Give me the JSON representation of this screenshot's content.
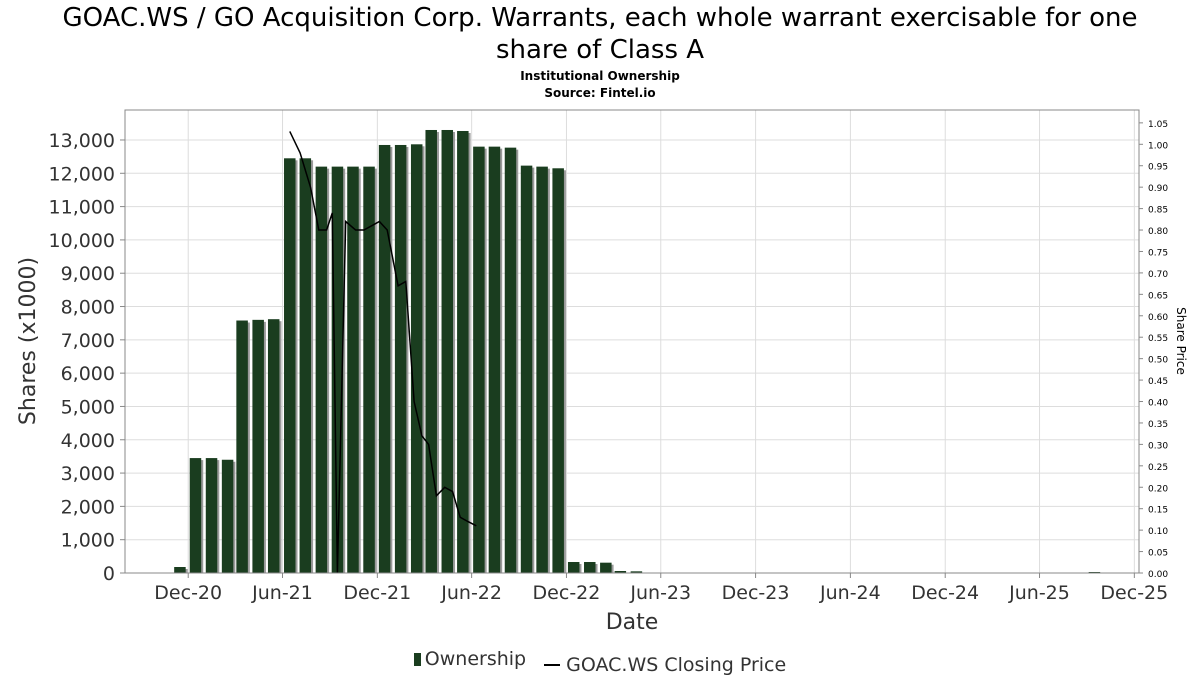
{
  "header": {
    "title_line1": "GOAC.WS / GO Acquisition Corp. Warrants, each whole warrant exercisable for one",
    "title_line2": "share of Class A",
    "subtitle1": "Institutional Ownership",
    "subtitle2": "Source: Fintel.io"
  },
  "legend": {
    "ownership": "Ownership",
    "price": "GOAC.WS Closing Price"
  },
  "colors": {
    "bar": "#1a3d1f",
    "bar_shadow": "#9a9a9a",
    "price_line": "#000000",
    "grid": "#dddddd"
  },
  "chart_data": {
    "type": "bar",
    "xlabel": "Date",
    "ylabel": "Shares (x1000)",
    "y2label": "Share Price",
    "ylim": [
      0,
      13900
    ],
    "y2lim": [
      0,
      1.08
    ],
    "yticks": [
      "0",
      "1,000",
      "2,000",
      "3,000",
      "4,000",
      "5,000",
      "6,000",
      "7,000",
      "8,000",
      "9,000",
      "10,000",
      "11,000",
      "12,000",
      "13,000"
    ],
    "y2ticks": [
      "0.00",
      "0.05",
      "0.10",
      "0.15",
      "0.20",
      "0.25",
      "0.30",
      "0.35",
      "0.40",
      "0.45",
      "0.50",
      "0.55",
      "0.60",
      "0.65",
      "0.70",
      "0.75",
      "0.80",
      "0.85",
      "0.90",
      "0.95",
      "1.00",
      "1.05"
    ],
    "xticks": [
      "Dec-20",
      "Jun-21",
      "Dec-21",
      "Jun-22",
      "Dec-22",
      "Jun-23",
      "Dec-23",
      "Jun-24",
      "Dec-24",
      "Jun-25",
      "Dec-25"
    ],
    "grid": true,
    "legend_position": "bottom",
    "series": [
      {
        "name": "Ownership",
        "x": [
          "2020-11-15",
          "2020-12-15",
          "2021-01-15",
          "2021-02-15",
          "2021-03-15",
          "2021-04-15",
          "2021-05-15",
          "2021-06-15",
          "2021-07-15",
          "2021-08-15",
          "2021-09-15",
          "2021-10-15",
          "2021-11-15",
          "2021-12-15",
          "2022-01-15",
          "2022-02-15",
          "2022-03-15",
          "2022-04-15",
          "2022-05-15",
          "2022-06-15",
          "2022-07-15",
          "2022-08-15",
          "2022-09-15",
          "2022-10-15",
          "2022-11-15",
          "2022-12-15",
          "2023-01-15",
          "2023-02-15",
          "2023-03-15",
          "2023-04-15",
          "2025-09-15"
        ],
        "values": [
          180,
          3450,
          3450,
          3400,
          7580,
          7600,
          7620,
          12450,
          12450,
          12200,
          12200,
          12200,
          12200,
          12850,
          12850,
          12870,
          13300,
          13300,
          13270,
          12800,
          12800,
          12770,
          12230,
          12200,
          12150,
          330,
          330,
          310,
          60,
          50,
          30
        ]
      },
      {
        "name": "GOAC.WS Closing Price",
        "x": [
          "2021-06-15",
          "2021-07-05",
          "2021-07-25",
          "2021-08-10",
          "2021-08-25",
          "2021-09-05",
          "2021-09-15",
          "2021-10-01",
          "2021-10-20",
          "2021-11-05",
          "2021-11-20",
          "2021-12-05",
          "2021-12-20",
          "2022-01-10",
          "2022-01-25",
          "2022-02-10",
          "2022-02-25",
          "2022-03-10",
          "2022-03-25",
          "2022-04-10",
          "2022-04-25",
          "2022-05-10",
          "2022-05-25",
          "2022-06-10"
        ],
        "values": [
          1.03,
          0.98,
          0.9,
          0.8,
          0.8,
          0.84,
          0.0,
          0.82,
          0.8,
          0.8,
          0.81,
          0.82,
          0.8,
          0.67,
          0.68,
          0.4,
          0.32,
          0.3,
          0.18,
          0.2,
          0.19,
          0.13,
          0.12,
          0.11
        ]
      }
    ]
  }
}
